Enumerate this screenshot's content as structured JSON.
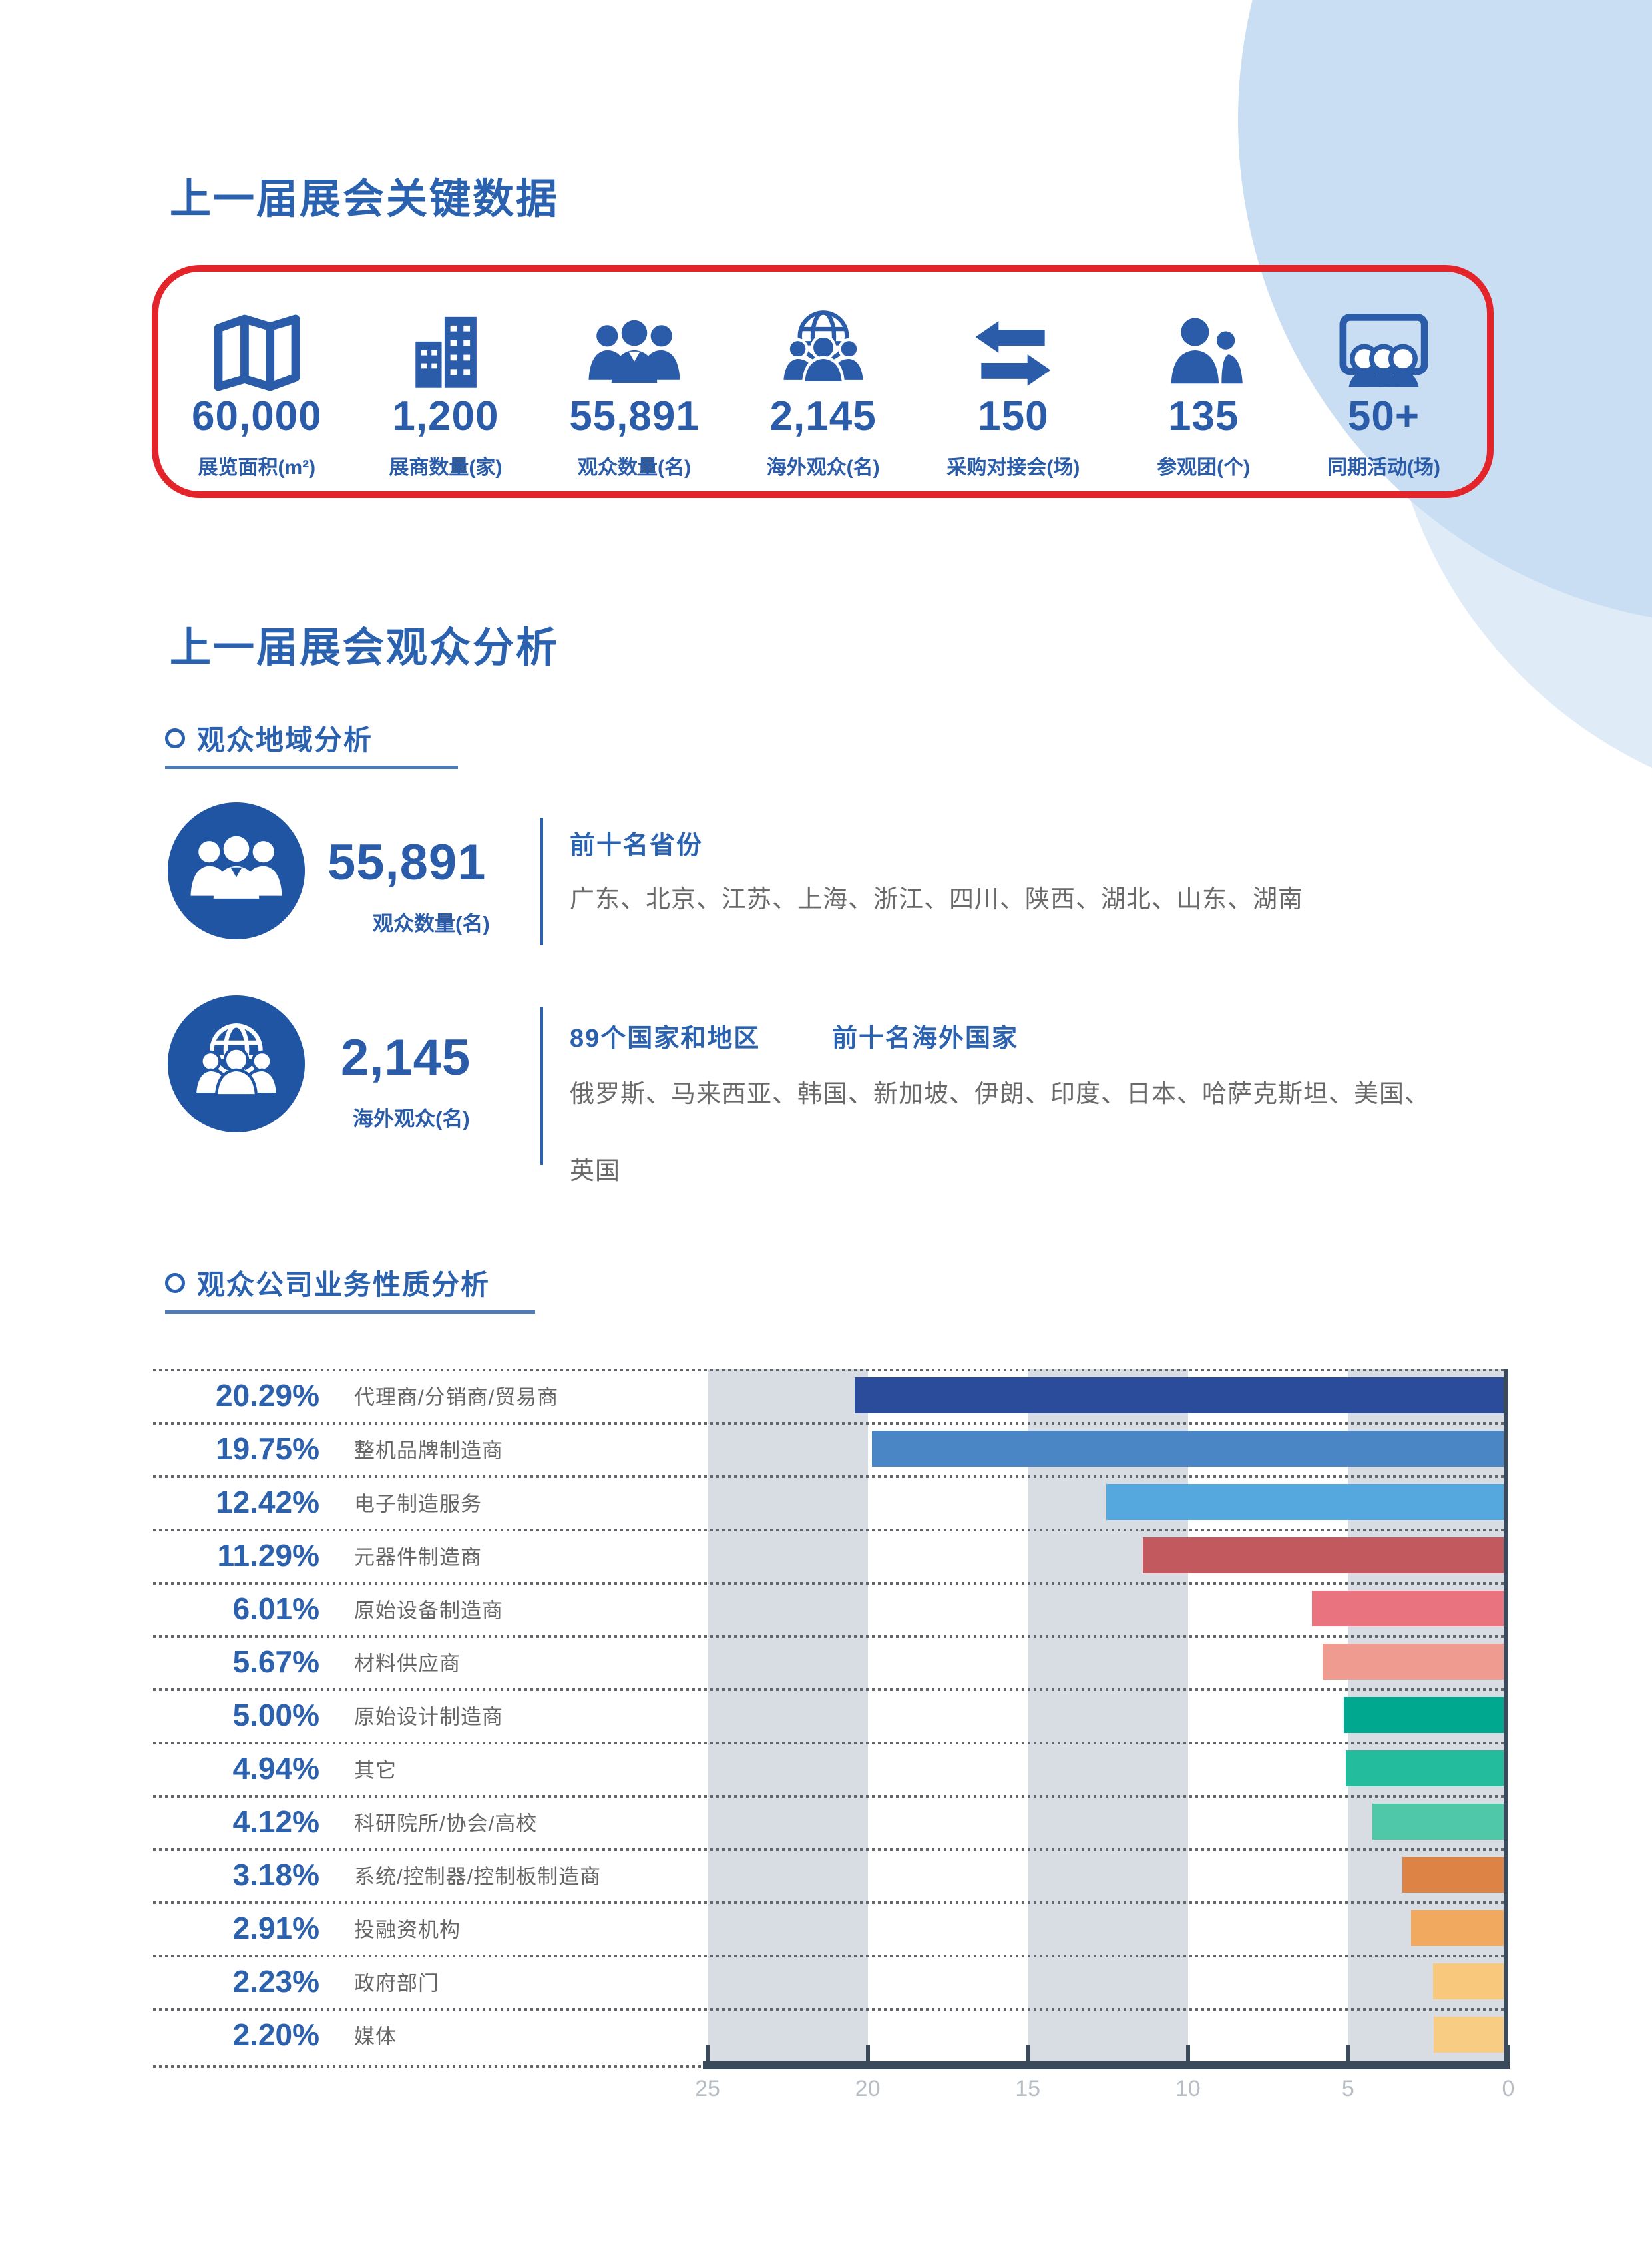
{
  "page": {
    "accent_blue": "#2a5caa",
    "heading_blue": "#2b62b0",
    "red_border": "#e3242b",
    "band_gray": "#d8dde4",
    "axis_dark": "#3b4a5a"
  },
  "sections": {
    "key_data": {
      "title": "上一届展会关键数据",
      "stats": [
        {
          "icon": "map-icon",
          "value": "60,000",
          "label": "展览面积(m²)"
        },
        {
          "icon": "building-icon",
          "value": "1,200",
          "label": "展商数量(家)"
        },
        {
          "icon": "visitors-icon",
          "value": "55,891",
          "label": "观众数量(名)"
        },
        {
          "icon": "overseas-icon",
          "value": "2,145",
          "label": "海外观众(名)"
        },
        {
          "icon": "exchange-icon",
          "value": "150",
          "label": "采购对接会(场)"
        },
        {
          "icon": "tour-group-icon",
          "value": "135",
          "label": "参观团(个)"
        },
        {
          "icon": "events-icon",
          "value": "50+",
          "label": "同期活动(场)"
        }
      ]
    },
    "audience": {
      "title": "上一届展会观众分析",
      "region": {
        "subtitle": "观众地域分析",
        "domestic": {
          "value": "55,891",
          "label": "观众数量(名)",
          "heading": "前十名省份",
          "list": "广东、北京、江苏、上海、浙江、四川、陕西、湖北、山东、湖南"
        },
        "overseas": {
          "value": "2,145",
          "label": "海外观众(名)",
          "heading_1": "89个国家和地区",
          "heading_2": "前十名海外国家",
          "list_line1": "俄罗斯、马来西亚、韩国、新加坡、伊朗、印度、日本、哈萨克斯坦、美国、",
          "list_line2": "英国"
        }
      },
      "business": {
        "subtitle": "观众公司业务性质分析"
      }
    }
  },
  "chart_data": {
    "type": "bar",
    "orientation": "horizontal, bars grow right-to-left from 0 axis on the right",
    "title": "观众公司业务性质分析",
    "categories": [
      "代理商/分销商/贸易商",
      "整机品牌制造商",
      "电子制造服务",
      "元器件制造商",
      "原始设备制造商",
      "材料供应商",
      "原始设计制造商",
      "其它",
      "科研院所/协会/高校",
      "系统/控制器/控制板制造商",
      "投融资机构",
      "政府部门",
      "媒体"
    ],
    "values": [
      20.29,
      19.75,
      12.42,
      11.29,
      6.01,
      5.67,
      5.0,
      4.94,
      4.12,
      3.18,
      2.91,
      2.23,
      2.2
    ],
    "value_labels": [
      "20.29%",
      "19.75%",
      "12.42%",
      "11.29%",
      "6.01%",
      "5.67%",
      "5.00%",
      "4.94%",
      "4.12%",
      "3.18%",
      "2.91%",
      "2.23%",
      "2.20%"
    ],
    "bar_colors": [
      "#2a4c9b",
      "#4a86c6",
      "#55a8dd",
      "#c2595f",
      "#e9737e",
      "#f09b90",
      "#00a88f",
      "#23bc9c",
      "#4fc7a9",
      "#dd8345",
      "#f0a95f",
      "#f8c87d",
      "#f9cc84"
    ],
    "xlim": [
      25,
      0
    ],
    "axis_ticks": [
      "25",
      "20",
      "15",
      "10",
      "5",
      "0"
    ],
    "grid": "alternating vertical gray bands between ticks",
    "legend": "none"
  }
}
